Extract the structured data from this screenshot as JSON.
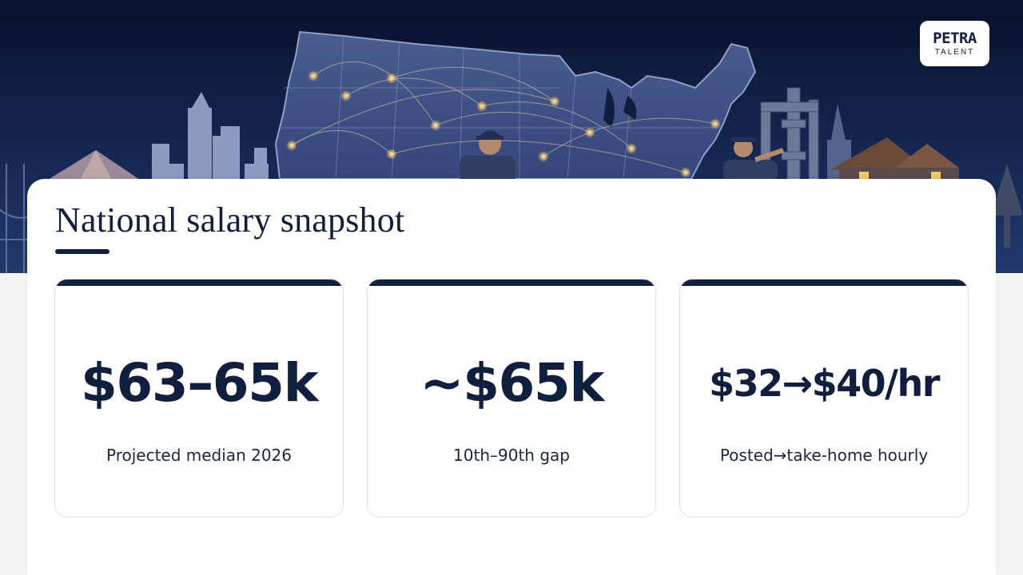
{
  "brand": {
    "logo_main": "PETRA",
    "logo_sub": "TALENT"
  },
  "slide": {
    "title": "National salary snapshot"
  },
  "cards": [
    {
      "value": "$63–65k",
      "label": "Projected median 2026"
    },
    {
      "value": "~$65k",
      "label": "10th–90th gap"
    },
    {
      "value": "$32→$40/hr",
      "label": "Posted→take-home hourly"
    }
  ],
  "colors": {
    "navy": "#0f1f3d",
    "card_accent": "#14213f",
    "panel": "#ffffff",
    "page_bg": "#f4f5f7"
  },
  "illustration": {
    "icons": [
      "us-map",
      "city-skyline",
      "mountain",
      "bridge",
      "plumber-figure",
      "pipes",
      "house",
      "trees"
    ]
  }
}
